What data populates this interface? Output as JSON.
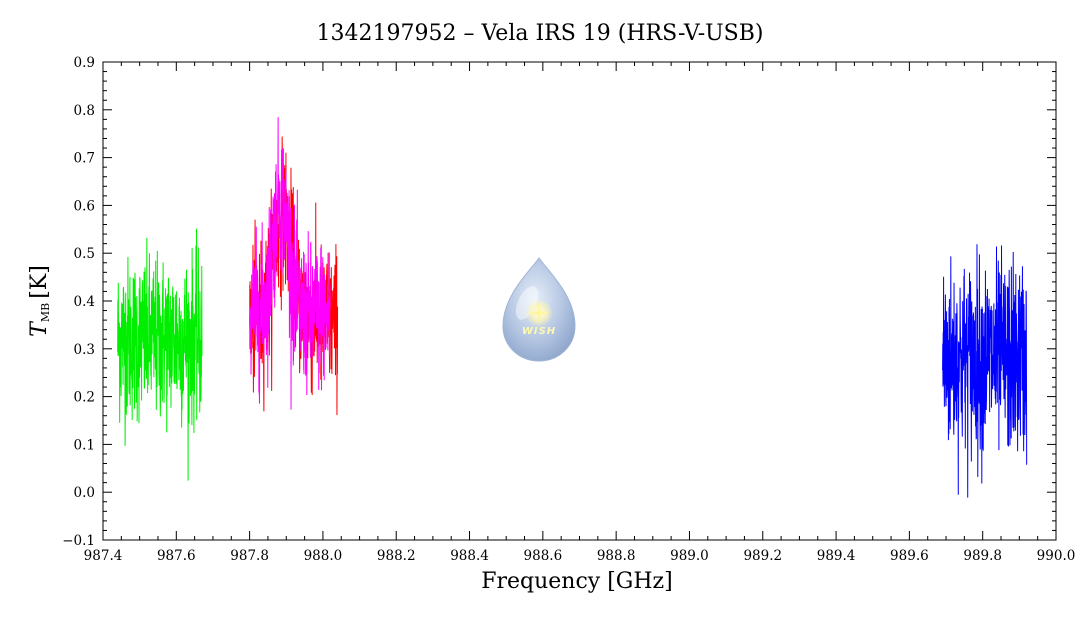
{
  "chart_data": {
    "type": "line",
    "title": "1342197952 – Vela IRS 19 (HRS-V-USB)",
    "xlabel": "Frequency [GHz]",
    "ylabel_main": "T",
    "ylabel_sub": "MB",
    "ylabel_unit": "[K]",
    "xlim": [
      987.4,
      990.0
    ],
    "ylim": [
      -0.1,
      0.9
    ],
    "xticks": [
      "987.4",
      "987.6",
      "987.8",
      "988.0",
      "988.2",
      "988.4",
      "988.6",
      "988.8",
      "989.0",
      "989.2",
      "989.4",
      "989.6",
      "989.8",
      "990.0"
    ],
    "yticks": [
      "-0.1",
      "0.0",
      "0.1",
      "0.2",
      "0.3",
      "0.4",
      "0.5",
      "0.6",
      "0.7",
      "0.8",
      "0.9"
    ],
    "grid": false,
    "series": [
      {
        "color": "#00ee00",
        "x_range": [
          987.44,
          987.67
        ],
        "mean": 0.32,
        "noise": 0.085,
        "points": 420,
        "features": []
      },
      {
        "color": "#ff0000",
        "x_range": [
          987.8,
          988.04
        ],
        "mean": 0.36,
        "noise": 0.075,
        "points": 420,
        "features": [
          {
            "x": 987.89,
            "height": 0.22,
            "width": 0.035
          }
        ]
      },
      {
        "color": "#ff00ff",
        "x_range": [
          987.8,
          988.02
        ],
        "mean": 0.37,
        "noise": 0.075,
        "points": 400,
        "features": [
          {
            "x": 987.885,
            "height": 0.25,
            "width": 0.03
          }
        ]
      },
      {
        "color": "#0000ff",
        "x_range": [
          989.69,
          989.92
        ],
        "mean": 0.28,
        "noise": 0.1,
        "points": 420,
        "features": []
      }
    ],
    "logo": {
      "text": "WISH"
    }
  }
}
